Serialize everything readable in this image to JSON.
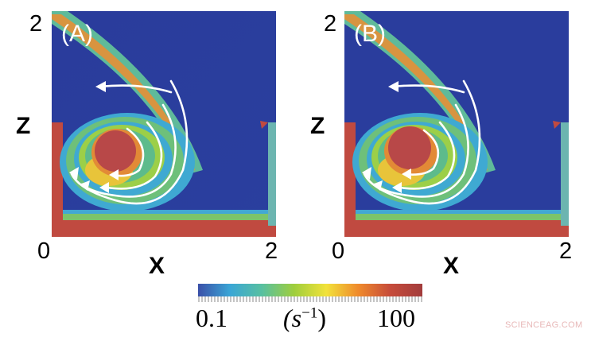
{
  "panels": [
    {
      "label": "(A)",
      "x_min": "0",
      "x_max": "2",
      "z_max": "2",
      "x_axis": "X",
      "z_axis": "Z"
    },
    {
      "label": "(B)",
      "x_min": "0",
      "x_max": "2",
      "z_max": "2",
      "x_axis": "X",
      "z_axis": "Z"
    }
  ],
  "colorbar": {
    "min_label": "0.1",
    "unit_label": "(s",
    "unit_exponent": "−1",
    "unit_close": ")",
    "max_label": "100",
    "colors": [
      "#3a4fa8",
      "#3aa6d6",
      "#58c0a0",
      "#9fce3c",
      "#f2e23a",
      "#ef8a2c",
      "#c64b3a",
      "#a23c3c"
    ]
  },
  "colors": {
    "background_field": "#2c3f9e",
    "core": "#b84848",
    "stream_arrows": "#ffffff"
  },
  "watermark": "SCIENCEAG.COM"
}
